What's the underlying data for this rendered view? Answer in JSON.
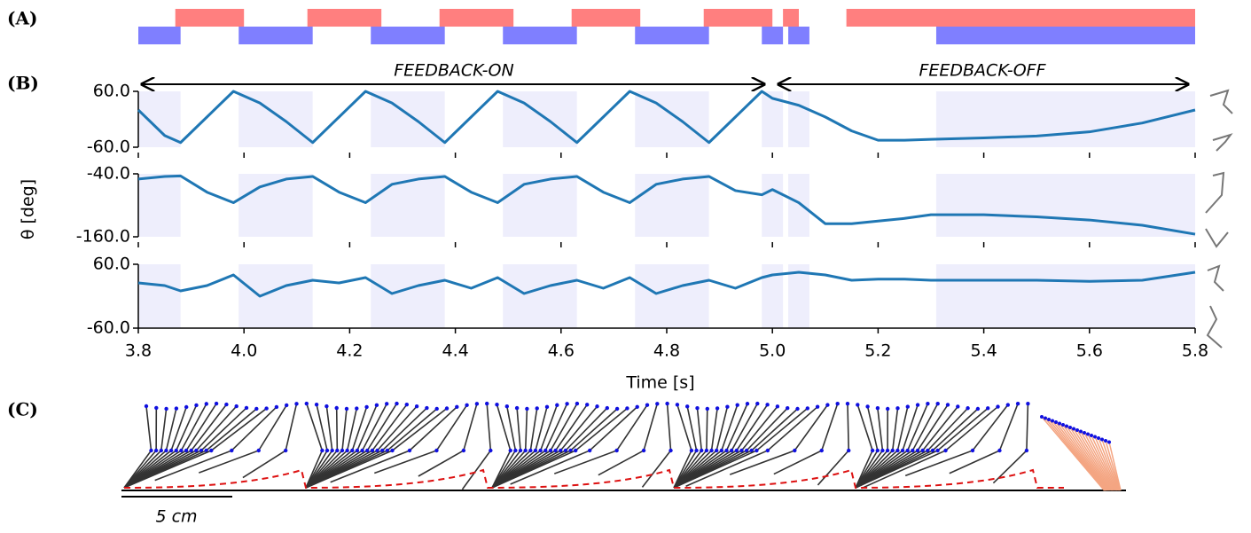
{
  "panel_labels": [
    "(A)",
    "(B)",
    "(C)"
  ],
  "chart_data": [
    {
      "type": "broken_barh",
      "series": [
        {
          "color": "#ff7f7f",
          "intervals": [
            [
              3.87,
              4.0
            ],
            [
              4.12,
              4.26
            ],
            [
              4.37,
              4.51
            ],
            [
              4.62,
              4.75
            ],
            [
              4.87,
              5.0
            ],
            [
              5.02,
              5.05
            ],
            [
              5.14,
              5.8
            ]
          ]
        },
        {
          "color": "#7f7fff",
          "intervals": [
            [
              3.8,
              3.88
            ],
            [
              3.99,
              4.13
            ],
            [
              4.24,
              4.38
            ],
            [
              4.49,
              4.63
            ],
            [
              4.74,
              4.88
            ],
            [
              4.98,
              5.02
            ],
            [
              5.03,
              5.07
            ],
            [
              5.31,
              5.8
            ]
          ]
        }
      ]
    },
    {
      "type": "line",
      "xlabel": "Time [s]",
      "ylabel": "θ [deg]",
      "annotations": [
        "FEEDBACK-ON",
        "FEEDBACK-OFF"
      ],
      "color": "#1f77b4",
      "shade_color": "#eeeefc",
      "xlim": [
        3.8,
        5.8
      ],
      "xticks": [
        3.8,
        {
          "value": 4,
          "label": "4.0"
        },
        4.2,
        4.4,
        4.6,
        4.8,
        {
          "value": 5,
          "label": "5.0"
        },
        5.2,
        5.4,
        5.6,
        5.8
      ],
      "x": [
        3.8,
        3.85,
        3.88,
        3.93,
        3.98,
        4.03,
        4.08,
        4.13,
        4.18,
        4.23,
        4.28,
        4.33,
        4.38,
        4.43,
        4.48,
        4.53,
        4.58,
        4.63,
        4.68,
        4.73,
        4.78,
        4.83,
        4.88,
        4.93,
        4.98,
        5.0,
        5.05,
        5.1,
        5.15,
        5.2,
        5.25,
        5.3,
        5.4,
        5.5,
        5.6,
        5.7,
        5.8
      ],
      "subplots": [
        {
          "ylim": [
            -60,
            60
          ],
          "yticks": [
            {
              "value": -60,
              "label": "-60.0"
            },
            {
              "value": 60,
              "label": "60.0"
            }
          ],
          "values": [
            20,
            -35,
            -50,
            5,
            60,
            35,
            -5,
            -50,
            5,
            60,
            35,
            -5,
            -50,
            5,
            60,
            35,
            -5,
            -50,
            5,
            60,
            35,
            -5,
            -50,
            5,
            60,
            45,
            30,
            5,
            -25,
            -45,
            -45,
            -43,
            -40,
            -36,
            -27,
            -8,
            20
          ]
        },
        {
          "ylim": [
            -160,
            -40
          ],
          "yticks": [
            {
              "value": -160,
              "label": "-160.0"
            },
            {
              "value": -40,
              "label": "-40.0"
            }
          ],
          "values": [
            -50,
            -45,
            -44,
            -75,
            -95,
            -65,
            -50,
            -45,
            -75,
            -95,
            -60,
            -50,
            -45,
            -75,
            -95,
            -60,
            -50,
            -45,
            -75,
            -95,
            -60,
            -50,
            -45,
            -72,
            -80,
            -70,
            -95,
            -135,
            -135,
            -130,
            -125,
            -118,
            -118,
            -122,
            -128,
            -138,
            -155
          ]
        },
        {
          "ylim": [
            -60,
            60
          ],
          "yticks": [
            {
              "value": -60,
              "label": "-60.0"
            },
            {
              "value": 60,
              "label": "60.0"
            }
          ],
          "values": [
            25,
            20,
            10,
            20,
            40,
            0,
            20,
            30,
            25,
            35,
            5,
            20,
            30,
            15,
            35,
            5,
            20,
            30,
            15,
            35,
            5,
            20,
            30,
            15,
            35,
            40,
            45,
            40,
            30,
            32,
            32,
            30,
            30,
            30,
            28,
            30,
            45
          ]
        }
      ]
    }
  ],
  "panel_c": {
    "scale_label": "5 cm"
  }
}
